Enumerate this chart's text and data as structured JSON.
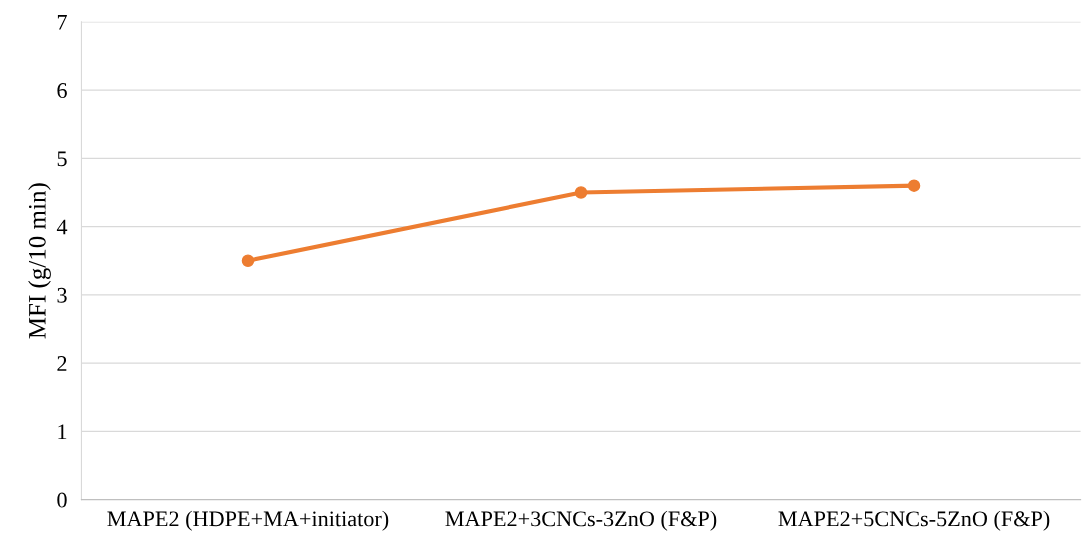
{
  "chart_data": {
    "type": "line",
    "ylabel": "MFI (g/10 min)",
    "categories": [
      "MAPE2 (HDPE+MA+initiator)",
      "MAPE2+3CNCs-3ZnO (F&P)",
      "MAPE2+5CNCs-5ZnO (F&P)"
    ],
    "series": [
      {
        "color": "#ed7d31",
        "values": [
          3.5,
          4.5,
          4.6
        ]
      }
    ],
    "ylim": [
      0,
      7
    ],
    "yticks": [
      0,
      1,
      2,
      3,
      4,
      5,
      6,
      7
    ],
    "grid": "y",
    "marker": "circle",
    "line_style": "solid"
  }
}
